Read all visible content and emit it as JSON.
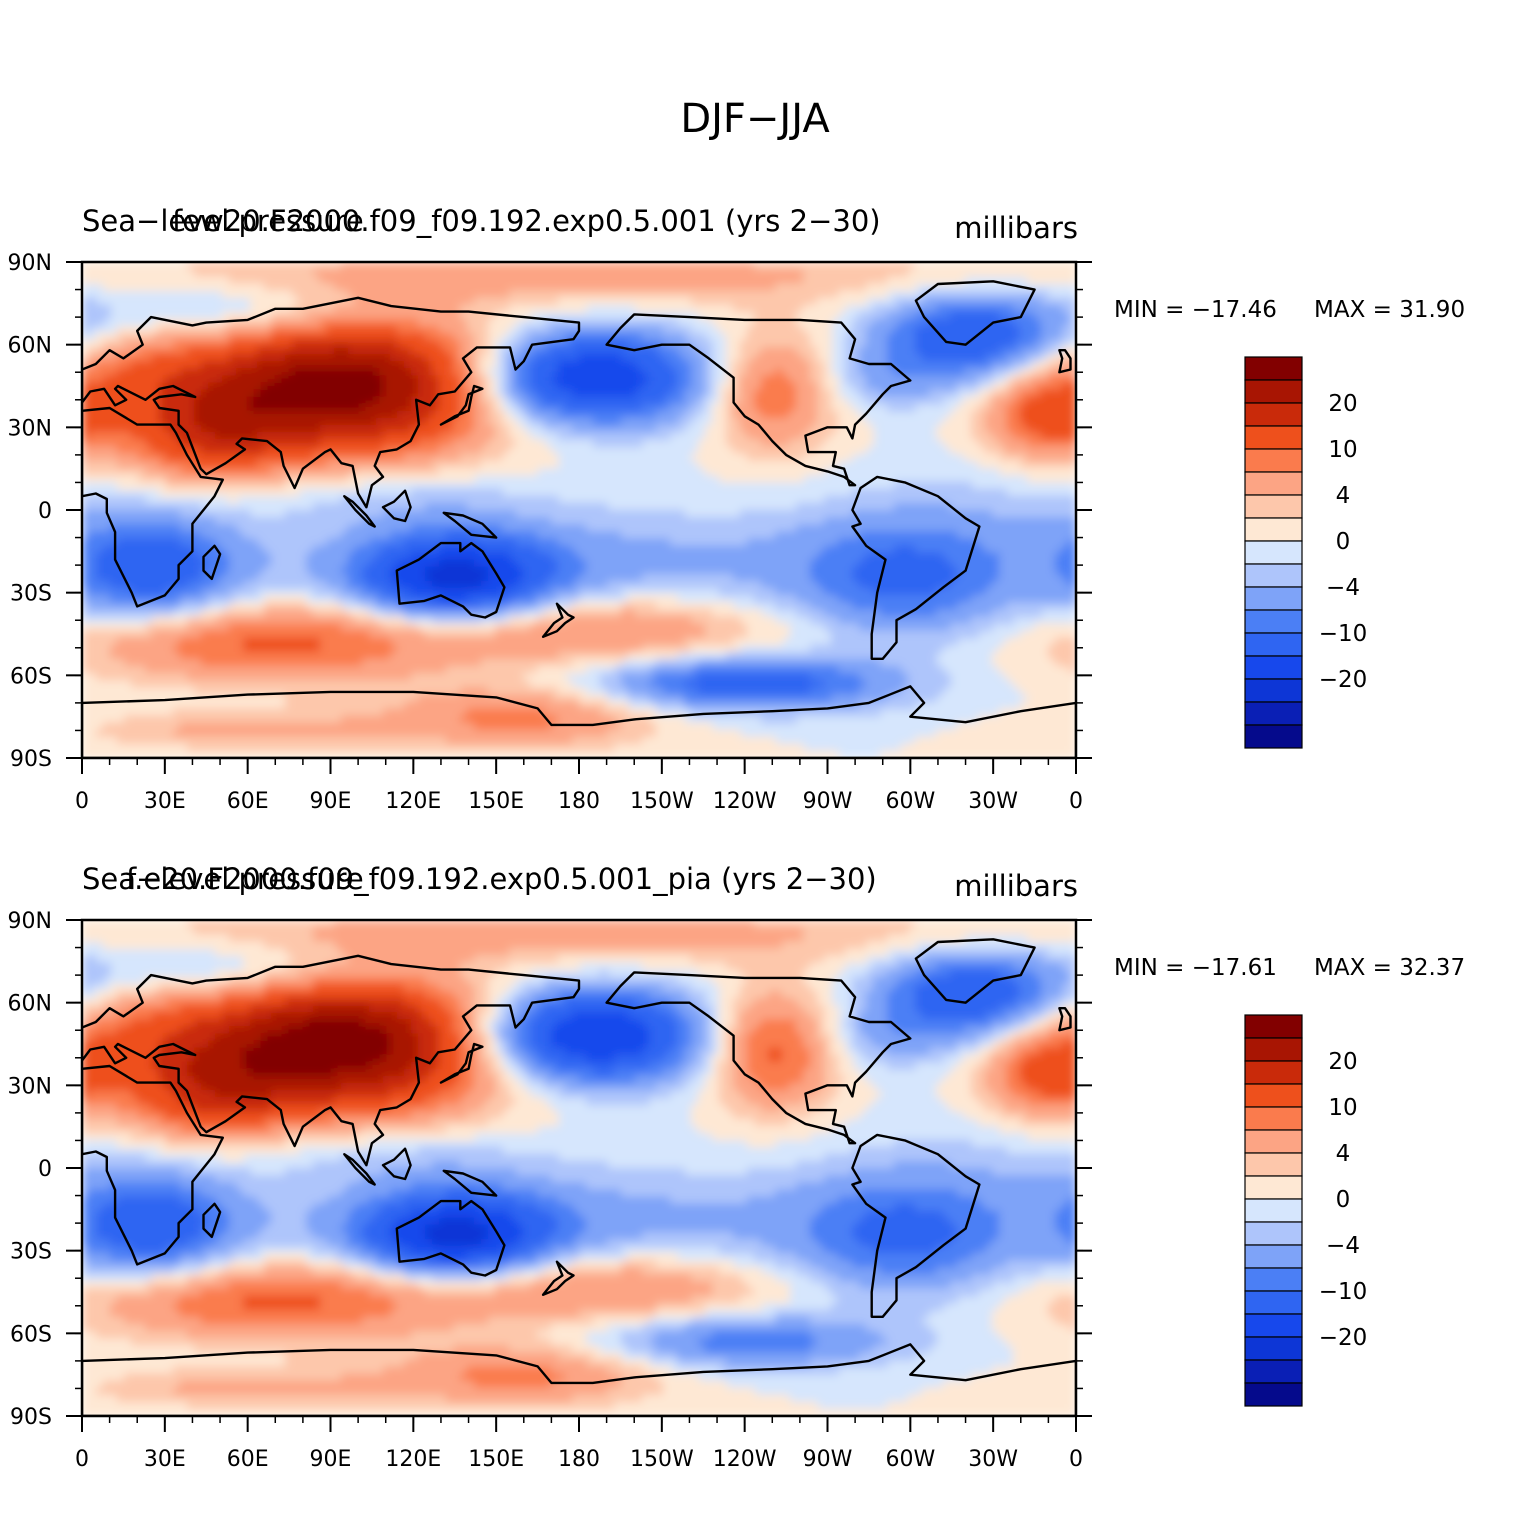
{
  "main_title": "DJF−JJA",
  "colors": {
    "levels": [
      "#050a8c",
      "#0a1fb5",
      "#0d36d6",
      "#1748ec",
      "#2f65f2",
      "#4b7ff5",
      "#7ea3f8",
      "#aec5fb",
      "#d6e6fd",
      "#fee8d4",
      "#fdc7ab",
      "#fca484",
      "#fa7b4d",
      "#ee501c",
      "#c92a0a",
      "#a81503",
      "#820000"
    ],
    "coast": "#000000"
  },
  "chart_data": [
    {
      "type": "heatmap",
      "variable_label": "Sea−level pressure",
      "case_label": "few20.F2000.f09_f09.192.exp0.5.001 (yrs 2−30)",
      "units": "millibars",
      "min_label": "MIN = −17.46",
      "max_label": "MAX =   31.90",
      "min": -17.46,
      "max": 31.9,
      "lon_ticks": [
        "0",
        "30E",
        "60E",
        "90E",
        "120E",
        "150E",
        "180",
        "150W",
        "120W",
        "90W",
        "60W",
        "30W",
        "0"
      ],
      "lat_ticks": [
        "90N",
        "60N",
        "30N",
        "0",
        "30S",
        "60S",
        "90S"
      ],
      "xlim": [
        0,
        360
      ],
      "ylim": [
        -90,
        90
      ],
      "colorbar_labels": [
        "20",
        "10",
        "4",
        "0",
        "−4",
        "−10",
        "−20"
      ],
      "contour_levels": [
        -30,
        -25,
        -20,
        -15,
        -10,
        -7,
        -4,
        -2,
        0,
        2,
        4,
        7,
        10,
        15,
        20,
        25
      ]
    },
    {
      "type": "heatmap",
      "variable_label": "Sea−level pressure",
      "case_label": "f.e20.F2000.f09_f09.192.exp0.5.001_pia (yrs 2−30)",
      "units": "millibars",
      "min_label": "MIN = −17.61",
      "max_label": "MAX =   32.37",
      "min": -17.61,
      "max": 32.37,
      "lon_ticks": [
        "0",
        "30E",
        "60E",
        "90E",
        "120E",
        "150E",
        "180",
        "150W",
        "120W",
        "90W",
        "60W",
        "30W",
        "0"
      ],
      "lat_ticks": [
        "90N",
        "60N",
        "30N",
        "0",
        "30S",
        "60S",
        "90S"
      ],
      "xlim": [
        0,
        360
      ],
      "ylim": [
        -90,
        90
      ],
      "colorbar_labels": [
        "20",
        "10",
        "4",
        "0",
        "−4",
        "−10",
        "−20"
      ],
      "contour_levels": [
        -30,
        -25,
        -20,
        -15,
        -10,
        -7,
        -4,
        -2,
        0,
        2,
        4,
        7,
        10,
        15,
        20,
        25
      ]
    }
  ]
}
